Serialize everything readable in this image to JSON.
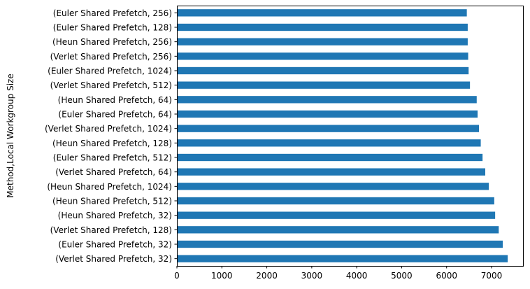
{
  "chart_data": {
    "type": "bar",
    "orientation": "horizontal",
    "ylabel": "Method,Local Workgroup Size",
    "xlabel": "",
    "xlim": [
      0,
      7700
    ],
    "xticks": [
      0,
      1000,
      2000,
      3000,
      4000,
      5000,
      6000,
      7000
    ],
    "grid": false,
    "bar_color": "#1f77b4",
    "categories": [
      "(Euler Shared Prefetch, 256)",
      "(Euler Shared Prefetch, 128)",
      "(Heun Shared Prefetch, 256)",
      "(Verlet Shared Prefetch, 256)",
      "(Euler Shared Prefetch, 1024)",
      "(Verlet Shared Prefetch, 512)",
      "(Heun Shared Prefetch, 64)",
      "(Euler Shared Prefetch, 64)",
      "(Verlet Shared Prefetch, 1024)",
      "(Heun Shared Prefetch, 128)",
      "(Euler Shared Prefetch, 512)",
      "(Verlet Shared Prefetch, 64)",
      "(Heun Shared Prefetch, 1024)",
      "(Heun Shared Prefetch, 512)",
      "(Heun Shared Prefetch, 32)",
      "(Verlet Shared Prefetch, 128)",
      "(Euler Shared Prefetch, 32)",
      "(Verlet Shared Prefetch, 32)"
    ],
    "values": [
      6450,
      6470,
      6470,
      6480,
      6490,
      6520,
      6670,
      6690,
      6720,
      6760,
      6800,
      6860,
      6940,
      7060,
      7080,
      7160,
      7250,
      7360
    ]
  }
}
